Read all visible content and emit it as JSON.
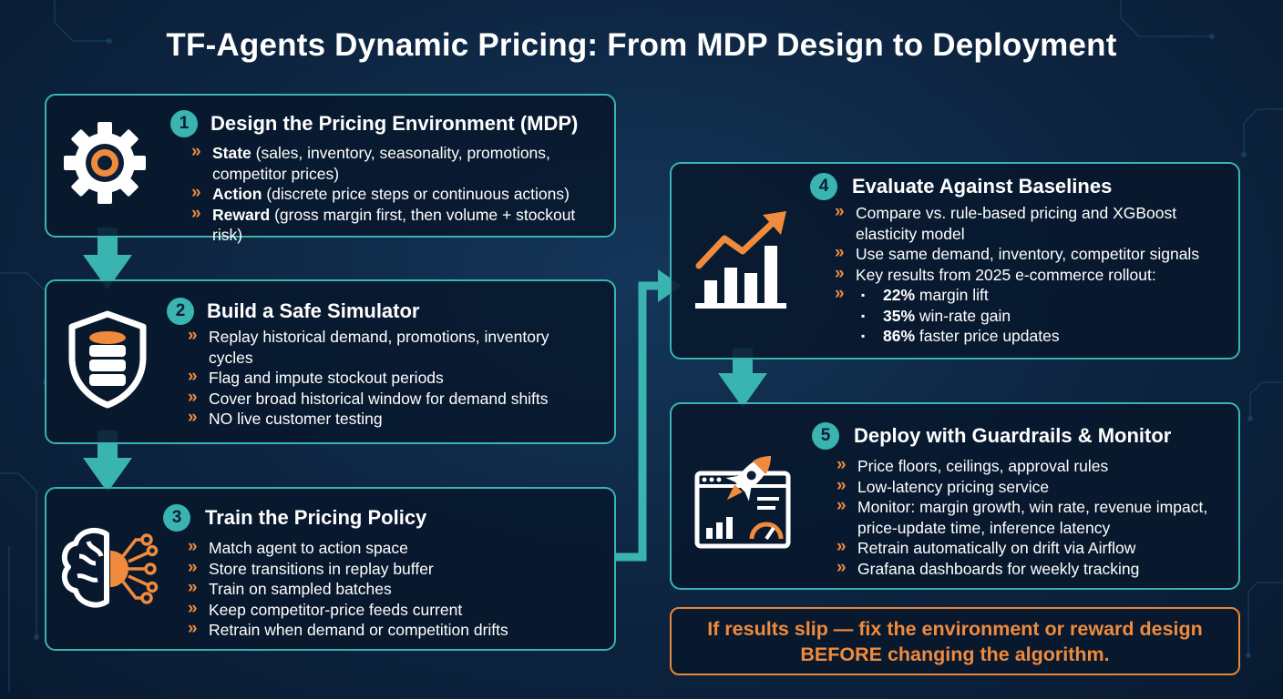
{
  "title": "TF-Agents Dynamic Pricing: From MDP Design to Deployment",
  "colors": {
    "accent_teal": "#3ab4b0",
    "accent_orange": "#f08a3c",
    "background": "#0d2440",
    "text": "#ffffff"
  },
  "steps": [
    {
      "number": "1",
      "title": "Design the Pricing Environment (MDP)",
      "icon": "gear-icon",
      "items": [
        {
          "bold": "State",
          "text": " (sales, inventory, seasonality, promotions, competitor prices)"
        },
        {
          "bold": "Action",
          "text": " (discrete price steps or continuous actions)"
        },
        {
          "bold": "Reward",
          "text": " (gross margin first, then volume + stockout risk)"
        }
      ]
    },
    {
      "number": "2",
      "title": "Build a Safe Simulator",
      "icon": "shield-database-icon",
      "items": [
        {
          "text": "Replay historical demand, promotions, inventory cycles"
        },
        {
          "text": "Flag and impute stockout periods"
        },
        {
          "text": "Cover broad historical window for demand shifts"
        },
        {
          "text": "NO live customer testing"
        }
      ]
    },
    {
      "number": "3",
      "title": "Train the Pricing Policy",
      "icon": "brain-circuit-icon",
      "items": [
        {
          "text": "Match agent to action space"
        },
        {
          "text": "Store transitions in replay buffer"
        },
        {
          "text": "Train on sampled batches"
        },
        {
          "text": "Keep competitor-price feeds current"
        },
        {
          "text": "Retrain when demand or competition drifts"
        }
      ]
    },
    {
      "number": "4",
      "title": "Evaluate Against Baselines",
      "icon": "growth-chart-icon",
      "items": [
        {
          "text": "Compare vs. rule-based pricing and XGBoost elasticity model"
        },
        {
          "text": "Use same demand, inventory, competitor signals"
        },
        {
          "text": "Key results from 2025 e-commerce rollout:"
        }
      ],
      "results": [
        {
          "value": "22%",
          "text": " margin lift"
        },
        {
          "value": "35%",
          "text": " win-rate gain"
        },
        {
          "value": "86%",
          "text": " faster price updates"
        }
      ]
    },
    {
      "number": "5",
      "title": "Deploy with Guardrails & Monitor",
      "icon": "rocket-dashboard-icon",
      "items": [
        {
          "text": "Price floors, ceilings, approval rules"
        },
        {
          "text": "Low-latency pricing service"
        },
        {
          "text": "Monitor: margin growth, win rate, revenue impact, price-update time, inference latency"
        },
        {
          "text": "Retrain automatically on drift via Airflow"
        },
        {
          "text": "Grafana dashboards for weekly tracking"
        }
      ]
    }
  ],
  "callout": {
    "line1": "If results slip — fix the environment or reward design",
    "line2": "BEFORE changing the algorithm."
  }
}
